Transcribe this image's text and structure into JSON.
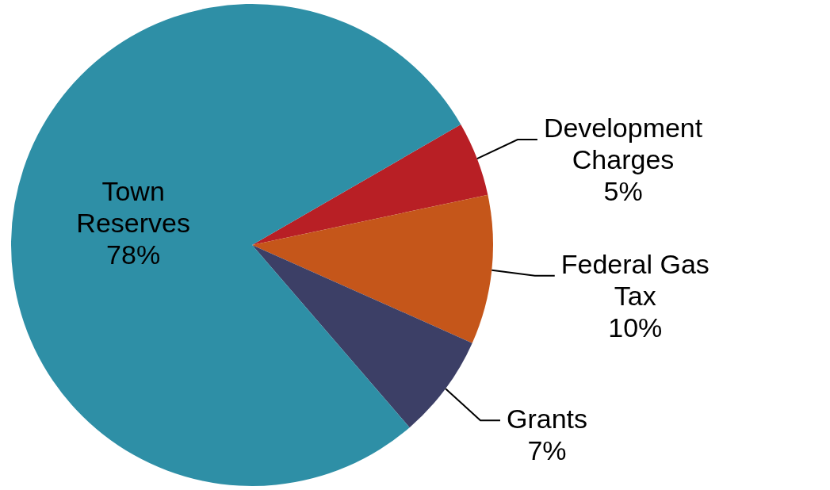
{
  "chart_data": {
    "type": "pie",
    "categories": [
      "Development Charges",
      "Federal Gas Tax",
      "Grants",
      "Town Reserves"
    ],
    "values": [
      5,
      10,
      7,
      78
    ],
    "value_labels": [
      "5%",
      "10%",
      "7%",
      "78%"
    ],
    "colors": [
      "#b81f25",
      "#c5561a",
      "#3c3f66",
      "#2e8fa6"
    ],
    "legend": false
  }
}
